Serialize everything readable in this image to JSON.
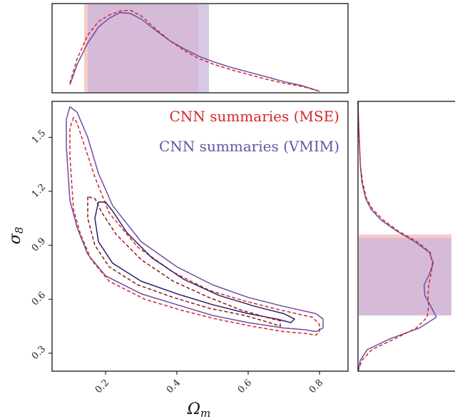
{
  "chart_data": {
    "type": "corner",
    "colors": {
      "mse": "#d62728",
      "mse_dark": "#8b1a1a",
      "vmim": "#6a51a3",
      "vmim_dark": "#2d1f66",
      "mse_fill": "#f4b9b3",
      "vmim_fill": "#c9b5dc"
    },
    "legend": {
      "entries": [
        {
          "series": "mse",
          "label": "CNN summaries (MSE)"
        },
        {
          "series": "vmim",
          "label": "CNN summaries (VMIM)"
        }
      ],
      "placement": "top-right"
    },
    "joint": {
      "xlabel": "Ω",
      "xlabel_sub": "m",
      "ylabel": "σ",
      "ylabel_sub": "8",
      "xlim": [
        0.05,
        0.88
      ],
      "ylim": [
        0.2,
        1.7
      ],
      "xticks": [
        0.2,
        0.4,
        0.6,
        0.8
      ],
      "xtick_labels": [
        "0.2",
        "0.4",
        "0.6",
        "0.8"
      ],
      "yticks": [
        0.3,
        0.6,
        0.9,
        1.2,
        1.5
      ],
      "ytick_labels": [
        "0.3",
        "0.6",
        "0.9",
        "1.2",
        "1.5"
      ],
      "contours": [
        {
          "series": "vmim",
          "level": "outer",
          "style": "solid",
          "points": [
            [
              0.1,
              1.67
            ],
            [
              0.09,
              1.6
            ],
            [
              0.09,
              1.45
            ],
            [
              0.095,
              1.3
            ],
            [
              0.1,
              1.15
            ],
            [
              0.12,
              1.0
            ],
            [
              0.15,
              0.85
            ],
            [
              0.2,
              0.73
            ],
            [
              0.3,
              0.63
            ],
            [
              0.4,
              0.57
            ],
            [
              0.5,
              0.51
            ],
            [
              0.6,
              0.47
            ],
            [
              0.7,
              0.44
            ],
            [
              0.76,
              0.43
            ],
            [
              0.79,
              0.42
            ],
            [
              0.81,
              0.44
            ],
            [
              0.81,
              0.49
            ],
            [
              0.79,
              0.52
            ],
            [
              0.7,
              0.56
            ],
            [
              0.6,
              0.61
            ],
            [
              0.5,
              0.68
            ],
            [
              0.4,
              0.78
            ],
            [
              0.3,
              0.92
            ],
            [
              0.22,
              1.12
            ],
            [
              0.18,
              1.3
            ],
            [
              0.15,
              1.5
            ],
            [
              0.12,
              1.64
            ],
            [
              0.1,
              1.67
            ]
          ]
        },
        {
          "series": "mse",
          "level": "outer",
          "style": "dashed",
          "points": [
            [
              0.11,
              1.61
            ],
            [
              0.1,
              1.55
            ],
            [
              0.1,
              1.4
            ],
            [
              0.105,
              1.25
            ],
            [
              0.11,
              1.1
            ],
            [
              0.13,
              0.96
            ],
            [
              0.16,
              0.82
            ],
            [
              0.21,
              0.7
            ],
            [
              0.31,
              0.6
            ],
            [
              0.41,
              0.54
            ],
            [
              0.51,
              0.49
            ],
            [
              0.61,
              0.45
            ],
            [
              0.7,
              0.42
            ],
            [
              0.76,
              0.41
            ],
            [
              0.79,
              0.4
            ],
            [
              0.8,
              0.42
            ],
            [
              0.8,
              0.46
            ],
            [
              0.78,
              0.5
            ],
            [
              0.69,
              0.54
            ],
            [
              0.59,
              0.59
            ],
            [
              0.49,
              0.65
            ],
            [
              0.39,
              0.75
            ],
            [
              0.29,
              0.89
            ],
            [
              0.21,
              1.08
            ],
            [
              0.17,
              1.28
            ],
            [
              0.14,
              1.46
            ],
            [
              0.12,
              1.58
            ],
            [
              0.11,
              1.61
            ]
          ]
        },
        {
          "series": "vmim",
          "level": "inner",
          "style": "solid",
          "points": [
            [
              0.18,
              1.14
            ],
            [
              0.17,
              1.05
            ],
            [
              0.18,
              0.92
            ],
            [
              0.22,
              0.8
            ],
            [
              0.3,
              0.7
            ],
            [
              0.4,
              0.63
            ],
            [
              0.5,
              0.57
            ],
            [
              0.6,
              0.52
            ],
            [
              0.68,
              0.49
            ],
            [
              0.72,
              0.47
            ],
            [
              0.73,
              0.49
            ],
            [
              0.7,
              0.52
            ],
            [
              0.62,
              0.56
            ],
            [
              0.52,
              0.62
            ],
            [
              0.42,
              0.71
            ],
            [
              0.33,
              0.83
            ],
            [
              0.26,
              0.97
            ],
            [
              0.22,
              1.09
            ],
            [
              0.2,
              1.14
            ],
            [
              0.18,
              1.14
            ]
          ]
        },
        {
          "series": "mse",
          "level": "inner",
          "style": "dashed",
          "points": [
            [
              0.15,
              1.17
            ],
            [
              0.15,
              1.05
            ],
            [
              0.17,
              0.9
            ],
            [
              0.21,
              0.78
            ],
            [
              0.29,
              0.68
            ],
            [
              0.39,
              0.61
            ],
            [
              0.49,
              0.55
            ],
            [
              0.59,
              0.51
            ],
            [
              0.66,
              0.47
            ],
            [
              0.69,
              0.45
            ],
            [
              0.69,
              0.48
            ],
            [
              0.65,
              0.5
            ],
            [
              0.58,
              0.54
            ],
            [
              0.49,
              0.61
            ],
            [
              0.39,
              0.7
            ],
            [
              0.3,
              0.82
            ],
            [
              0.23,
              0.96
            ],
            [
              0.19,
              1.08
            ],
            [
              0.17,
              1.16
            ],
            [
              0.15,
              1.17
            ]
          ]
        }
      ]
    },
    "marginal_x": {
      "x": [
        0.1,
        0.12,
        0.15,
        0.18,
        0.21,
        0.24,
        0.27,
        0.3,
        0.34,
        0.38,
        0.42,
        0.46,
        0.5,
        0.55,
        0.6,
        0.65,
        0.7,
        0.75,
        0.8
      ],
      "series": [
        {
          "series": "vmim",
          "style": "solid",
          "values": [
            0.1,
            0.35,
            0.62,
            0.82,
            0.93,
            1.0,
            0.99,
            0.92,
            0.78,
            0.65,
            0.55,
            0.46,
            0.39,
            0.32,
            0.26,
            0.2,
            0.14,
            0.09,
            0.02
          ]
        },
        {
          "series": "mse",
          "style": "dashed",
          "values": [
            0.12,
            0.42,
            0.72,
            0.89,
            0.97,
            1.02,
            1.03,
            0.96,
            0.8,
            0.65,
            0.53,
            0.43,
            0.36,
            0.29,
            0.23,
            0.17,
            0.12,
            0.08,
            0.02
          ]
        }
      ],
      "bands": [
        {
          "series": "mse",
          "range": [
            0.14,
            0.46
          ]
        },
        {
          "series": "vmim",
          "range": [
            0.15,
            0.49
          ]
        }
      ]
    },
    "marginal_y": {
      "y": [
        0.2,
        0.26,
        0.32,
        0.38,
        0.44,
        0.5,
        0.56,
        0.62,
        0.68,
        0.74,
        0.8,
        0.86,
        0.92,
        0.98,
        1.04,
        1.1,
        1.16,
        1.25,
        1.35,
        1.45,
        1.55,
        1.62,
        1.7
      ],
      "series": [
        {
          "series": "vmim",
          "style": "solid",
          "values": [
            0.0,
            0.03,
            0.12,
            0.42,
            0.8,
            1.02,
            0.95,
            0.87,
            0.86,
            0.93,
            0.98,
            0.93,
            0.74,
            0.5,
            0.3,
            0.17,
            0.1,
            0.05,
            0.03,
            0.02,
            0.01,
            0.005,
            0.0
          ]
        },
        {
          "series": "mse",
          "style": "dashed",
          "values": [
            0.0,
            0.05,
            0.18,
            0.48,
            0.76,
            0.9,
            0.92,
            0.91,
            0.92,
            0.95,
            0.97,
            0.94,
            0.77,
            0.52,
            0.33,
            0.19,
            0.11,
            0.06,
            0.03,
            0.02,
            0.01,
            0.005,
            0.0
          ]
        }
      ],
      "bands": [
        {
          "series": "mse",
          "range": [
            0.51,
            0.96
          ]
        },
        {
          "series": "vmim",
          "range": [
            0.51,
            0.94
          ]
        }
      ]
    }
  }
}
